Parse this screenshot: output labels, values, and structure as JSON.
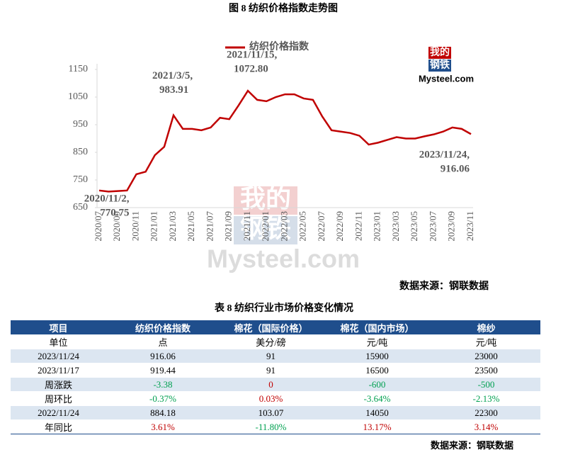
{
  "chart_data": {
    "type": "line",
    "title": "图 8   纺织价格指数走势图",
    "categories": [
      "2020/07",
      null,
      "2020/09",
      null,
      "2020/11",
      null,
      "2021/01",
      null,
      "2021/03",
      null,
      "2021/05",
      null,
      "2021/07",
      null,
      "2021/09",
      null,
      "2021/11",
      null,
      "2022/01",
      null,
      "2022/03",
      null,
      "2022/05",
      null,
      "2022/07",
      null,
      "2022/09",
      null,
      "2022/11",
      null,
      "2023/01",
      null,
      "2023/03",
      null,
      "2023/05",
      null,
      "2023/07",
      null,
      "2023/09",
      null,
      "2023/11"
    ],
    "series": [
      {
        "name": "纺织价格指数",
        "color": "#c00000",
        "values": [
          712,
          708,
          710,
          712,
          770.75,
          780,
          840,
          870,
          983.91,
          935,
          935,
          930,
          940,
          975,
          970,
          1020,
          1072.8,
          1040,
          1035,
          1050,
          1060,
          1060,
          1045,
          1040,
          980,
          930,
          925,
          920,
          910,
          878,
          885,
          895,
          905,
          900,
          900,
          908,
          915,
          925,
          940,
          935,
          916.06
        ],
        "value_labels": [
          null,
          null,
          null,
          null,
          "770.75",
          null,
          null,
          null,
          "983.91",
          null,
          null,
          null,
          null,
          null,
          null,
          null,
          "1072.80",
          null,
          null,
          null,
          null,
          null,
          null,
          null,
          null,
          null,
          null,
          null,
          null,
          null,
          null,
          null,
          null,
          null,
          null,
          null,
          null,
          null,
          null,
          null,
          "916.06"
        ],
        "annotations": [
          null,
          null,
          null,
          null,
          "2020/11/2,",
          null,
          null,
          null,
          "2021/3/5,",
          null,
          null,
          null,
          null,
          null,
          null,
          null,
          "2021/11/15,",
          null,
          null,
          null,
          null,
          null,
          null,
          null,
          null,
          null,
          null,
          null,
          null,
          null,
          null,
          null,
          null,
          null,
          null,
          null,
          null,
          null,
          null,
          null,
          "2023/11/24,"
        ]
      }
    ],
    "ylim": [
      650,
      1150
    ],
    "yticks": [
      650,
      750,
      850,
      950,
      1050,
      1150
    ],
    "grid": false,
    "logo": {
      "top": "我的",
      "bottom": "钢铁",
      "brand": "Mysteel.com"
    },
    "source": "数据来源：钢联数据"
  },
  "table": {
    "title": "表 8 纺织行业市场价格变化情况",
    "header": [
      "项目",
      "纺织价格指数",
      "棉花（国际价格）",
      "棉花（国内市场）",
      "棉纱"
    ],
    "rows": [
      [
        "单位",
        "点",
        "美分/磅",
        "元/吨",
        "元/吨"
      ],
      [
        "2023/11/24",
        916.06,
        91,
        15900,
        23000
      ],
      [
        "2023/11/17",
        919.44,
        91,
        16500,
        23500
      ],
      [
        "周涨跌",
        -3.38,
        0,
        -600,
        -500
      ],
      [
        "周环比",
        "-0.37%",
        "0.03%",
        "-3.64%",
        "-2.13%"
      ],
      [
        "2022/11/24",
        884.18,
        103.07,
        14050,
        22300
      ],
      [
        "年同比",
        "3.61%",
        "-11.80%",
        "13.17%",
        "3.14%"
      ]
    ],
    "signed_rows": [
      3,
      4,
      6
    ],
    "source": "数据来源：钢联数据"
  }
}
